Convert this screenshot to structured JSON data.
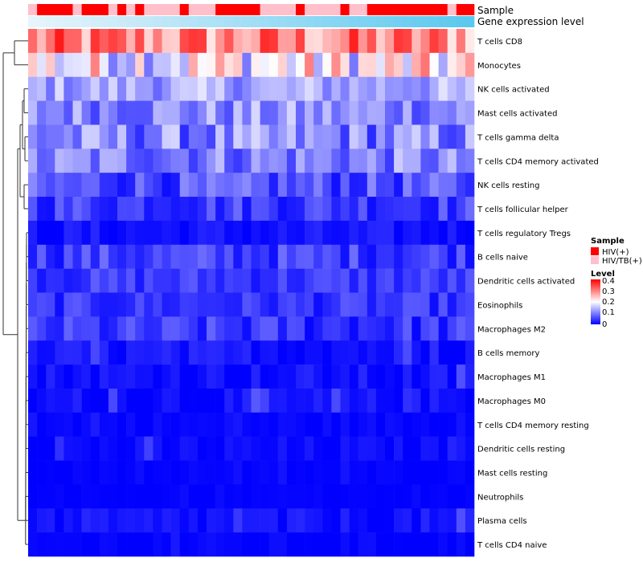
{
  "chart_data": {
    "type": "heatmap",
    "title": "",
    "annotation_tracks": [
      "Sample",
      "Gene expression level"
    ],
    "sample_groups": {
      "legend_title": "Sample",
      "categories": [
        "HIV(+)",
        "HIV/TB(+)"
      ],
      "colors": [
        "#ff0000",
        "#ffc0cb"
      ],
      "columns": [
        1,
        0,
        0,
        0,
        0,
        1,
        0,
        0,
        0,
        1,
        0,
        1,
        0,
        1,
        1,
        1,
        1,
        0,
        1,
        1,
        1,
        0,
        0,
        0,
        0,
        0,
        1,
        1,
        1,
        1,
        0,
        1,
        1,
        1,
        1,
        0,
        1,
        1,
        0,
        0,
        0,
        0,
        0,
        0,
        0,
        0,
        0,
        1,
        0,
        0
      ]
    },
    "gene_expression_level": {
      "color_from": "#e8f4fb",
      "color_to": "#5bc8ef"
    },
    "rows": [
      "T cells CD8",
      "Monocytes",
      "NK cells activated",
      "Mast cells activated",
      "T cells gamma delta",
      "T cells CD4 memory activated",
      "NK cells resting",
      "T cells follicular helper",
      "T cells regulatory  Tregs",
      "B cells naive",
      "Dendritic cells activated",
      "Eosinophils",
      "Macrophages M2",
      "B cells memory",
      "Macrophages M1",
      "Macrophages M0",
      "T cells CD4 memory resting",
      "Dendritic cells resting",
      "Mast cells resting",
      "Neutrophils",
      "Plasma cells",
      "T cells CD4 naive"
    ],
    "n_columns": 50,
    "row_base_levels": [
      0.29,
      0.2,
      0.13,
      0.11,
      0.1,
      0.1,
      0.06,
      0.05,
      0.012,
      0.05,
      0.045,
      0.04,
      0.04,
      0.015,
      0.012,
      0.01,
      0.004,
      0.006,
      0.002,
      0.001,
      0.01,
      0.002
    ],
    "row_variation": [
      0.09,
      0.11,
      0.05,
      0.06,
      0.07,
      0.06,
      0.05,
      0.04,
      0.02,
      0.04,
      0.03,
      0.03,
      0.04,
      0.02,
      0.02,
      0.02,
      0.01,
      0.015,
      0.005,
      0.003,
      0.02,
      0.01
    ],
    "color_legend": {
      "title": "Level",
      "range": [
        0,
        0.4
      ],
      "ticks": [
        "0.4",
        "0.3",
        "0.2",
        "0.1",
        "0"
      ],
      "colors": [
        "#0000ff",
        "#ffffff",
        "#ff0000"
      ]
    },
    "dendrogram": "row clustering tree on left"
  }
}
